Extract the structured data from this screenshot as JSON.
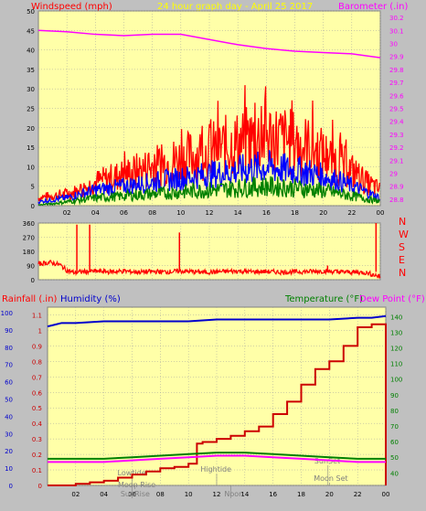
{
  "header": {
    "left_title": "Windspeed (mph)",
    "center_title": "24 hour graph day - April 25 2017",
    "right_title": "Barometer (.in)"
  },
  "colors": {
    "background": "#c0c0c0",
    "plot_bg": "#ffffa8",
    "grid": "#a0a0a0",
    "wind_gust": "#ff0000",
    "wind_avg": "#0000ff",
    "wind_low": "#008000",
    "barometer": "#ff00ff",
    "wind_dir": "#ff0000",
    "rain": "#cc0000",
    "humidity": "#0000cc",
    "temperature": "#008000",
    "dewpoint": "#ff00ff",
    "events": "#808080",
    "left_axis_label": "#ff0000",
    "right_axis_label": "#ff00ff",
    "title_text": "#ffff00"
  },
  "chart_data": [
    {
      "type": "line",
      "x_tick_labels": [
        "02",
        "04",
        "06",
        "08",
        "10",
        "12",
        "14",
        "16",
        "18",
        "20",
        "22",
        "00"
      ],
      "xlim": [
        0,
        24
      ],
      "ylim": [
        0,
        50
      ],
      "y_ticks": [
        0,
        5,
        10,
        15,
        20,
        25,
        30,
        35,
        40,
        45,
        50
      ],
      "y2lim": [
        28.75,
        30.25
      ],
      "y2_ticks": [
        "28.8",
        "28.9",
        "29",
        "29.1",
        "29.2",
        "29.3",
        "29.4",
        "29.5",
        "29.6",
        "29.7",
        "29.8",
        "29.9",
        "30",
        "30.1",
        "30.2"
      ],
      "grid": true,
      "series": [
        {
          "name": "Windspeed (mph)",
          "axis": "left",
          "x": [
            0,
            1,
            2,
            3,
            4,
            5,
            6,
            7,
            8,
            9,
            10,
            11,
            12,
            13,
            14,
            15,
            16,
            17,
            18,
            19,
            20,
            21,
            22,
            23,
            24
          ],
          "values": [
            2,
            2.5,
            3,
            4,
            6,
            7,
            8,
            9,
            10,
            11,
            12,
            13,
            14,
            15,
            16,
            17,
            18,
            17,
            16,
            15,
            13,
            11,
            9,
            6,
            4
          ]
        },
        {
          "name": "Wind avg",
          "axis": "left",
          "x": [
            0,
            1,
            2,
            3,
            4,
            5,
            6,
            7,
            8,
            9,
            10,
            11,
            12,
            13,
            14,
            15,
            16,
            17,
            18,
            19,
            20,
            21,
            22,
            23,
            24
          ],
          "values": [
            1,
            1.5,
            2,
            3,
            4,
            4.5,
            5,
            5.5,
            6,
            6.5,
            7,
            7.5,
            8,
            8.5,
            9,
            9.5,
            10,
            9.5,
            9,
            8.5,
            7.5,
            6.5,
            5,
            3.5,
            2
          ]
        },
        {
          "name": "Wind low",
          "axis": "left",
          "x": [
            0,
            1,
            2,
            3,
            4,
            5,
            6,
            7,
            8,
            9,
            10,
            11,
            12,
            13,
            14,
            15,
            16,
            17,
            18,
            19,
            20,
            21,
            22,
            23,
            24
          ],
          "values": [
            0.2,
            0.5,
            1,
            1.5,
            2,
            2.2,
            2.5,
            2.8,
            3,
            3.2,
            3.5,
            3.8,
            4,
            4.2,
            4.5,
            4.8,
            5,
            4.8,
            4.5,
            4.2,
            3.8,
            3.2,
            2.5,
            1.8,
            1
          ]
        },
        {
          "name": "Barometer (.in)",
          "axis": "right",
          "x": [
            0,
            2,
            4,
            6,
            8,
            10,
            12,
            14,
            16,
            18,
            20,
            22,
            24
          ],
          "values": [
            30.1,
            30.09,
            30.07,
            30.06,
            30.07,
            30.07,
            30.03,
            29.99,
            29.96,
            29.94,
            29.93,
            29.92,
            29.89
          ]
        }
      ]
    },
    {
      "type": "line",
      "y_ticks": [
        0,
        90,
        180,
        270,
        360
      ],
      "ylim": [
        0,
        360
      ],
      "xlim": [
        0,
        24
      ],
      "direction_labels": [
        "N",
        "W",
        "S",
        "E",
        "N"
      ],
      "grid": true,
      "series": [
        {
          "name": "Wind direction",
          "x": [
            0,
            0.8,
            1.5,
            2,
            2.5,
            3,
            4,
            5,
            6,
            7,
            8,
            9,
            10,
            11,
            12,
            13,
            14,
            15,
            16,
            17,
            18,
            19,
            20,
            21,
            22,
            23,
            24
          ],
          "values": [
            100,
            110,
            95,
            60,
            45,
            50,
            55,
            50,
            55,
            48,
            52,
            50,
            55,
            50,
            48,
            52,
            55,
            50,
            52,
            48,
            50,
            52,
            55,
            50,
            48,
            45,
            20
          ]
        },
        {
          "name": "Spikes",
          "x": [
            2.7,
            3.6,
            9.9,
            20.3,
            23.7
          ],
          "values": [
            350,
            350,
            300,
            90,
            360
          ]
        }
      ]
    },
    {
      "type": "line",
      "left_label_1": "Rainfall (.in)",
      "left_label_2": "Humidity (%)",
      "right_label_1": "Temperature (°F)",
      "right_label_2": "Dew Point (°F)",
      "xlim": [
        0,
        24
      ],
      "x_tick_labels": [
        "02",
        "04",
        "06",
        "08",
        "10",
        "12",
        "14",
        "16",
        "18",
        "20",
        "22",
        "00"
      ],
      "y_humidity_ticks": [
        0,
        10,
        20,
        30,
        40,
        50,
        60,
        70,
        80,
        90,
        100
      ],
      "y_rain_ticks": [
        "0",
        "0.1",
        "0.2",
        "0.3",
        "0.4",
        "0.5",
        "0.6",
        "0.7",
        "0.8",
        "0.9",
        "1",
        "1.1"
      ],
      "y_temp_ticks": [
        40,
        50,
        60,
        70,
        80,
        90,
        100,
        110,
        120,
        130,
        140
      ],
      "ylim_rain": [
        0,
        1.15
      ],
      "ylim_temp": [
        32,
        146
      ],
      "grid": true,
      "series": [
        {
          "name": "Rainfall",
          "axis": "rain",
          "x": [
            0,
            1,
            2,
            3,
            4,
            5,
            6,
            7,
            8,
            9,
            10,
            10.4,
            10.6,
            11,
            12,
            13,
            14,
            15,
            16,
            17,
            18,
            19,
            20,
            21,
            22,
            23,
            23.5,
            24
          ],
          "values": [
            0,
            0,
            0.01,
            0.02,
            0.03,
            0.05,
            0.07,
            0.09,
            0.11,
            0.12,
            0.14,
            0.14,
            0.27,
            0.28,
            0.3,
            0.32,
            0.35,
            0.38,
            0.46,
            0.54,
            0.65,
            0.75,
            0.8,
            0.9,
            1.02,
            1.04,
            1.04,
            0
          ]
        },
        {
          "name": "Humidity",
          "axis": "humidity",
          "x": [
            0,
            0.5,
            1,
            2,
            4,
            6,
            8,
            10,
            12,
            14,
            16,
            18,
            20,
            22,
            23,
            24
          ],
          "values": [
            92,
            93,
            94,
            94,
            95,
            95,
            95,
            95,
            96,
            96,
            96,
            96,
            96,
            97,
            97,
            98
          ]
        },
        {
          "name": "Temperature",
          "axis": "temp",
          "x": [
            0,
            2,
            4,
            6,
            8,
            10,
            12,
            14,
            16,
            18,
            20,
            22,
            24
          ],
          "values": [
            49,
            49,
            49,
            50,
            51,
            52,
            53,
            53,
            52,
            51,
            50,
            49,
            49
          ]
        },
        {
          "name": "Dew Point",
          "axis": "temp",
          "x": [
            0,
            2,
            4,
            6,
            8,
            10,
            12,
            14,
            16,
            18,
            20,
            22,
            24
          ],
          "values": [
            47,
            47,
            47,
            48,
            49,
            50,
            51,
            51,
            50,
            49,
            48,
            47,
            47
          ]
        }
      ],
      "events": [
        {
          "label": "Lowtide",
          "x": 6.0
        },
        {
          "label": "Moon Rise",
          "x": 6.2
        },
        {
          "label": "SunRise",
          "x": 6.0
        },
        {
          "label": "Hightide",
          "x": 12.0
        },
        {
          "label": "Noon",
          "x": 13.0
        },
        {
          "label": "SunSet",
          "x": 19.9
        },
        {
          "label": "Moon Set",
          "x": 20.0
        }
      ]
    }
  ]
}
